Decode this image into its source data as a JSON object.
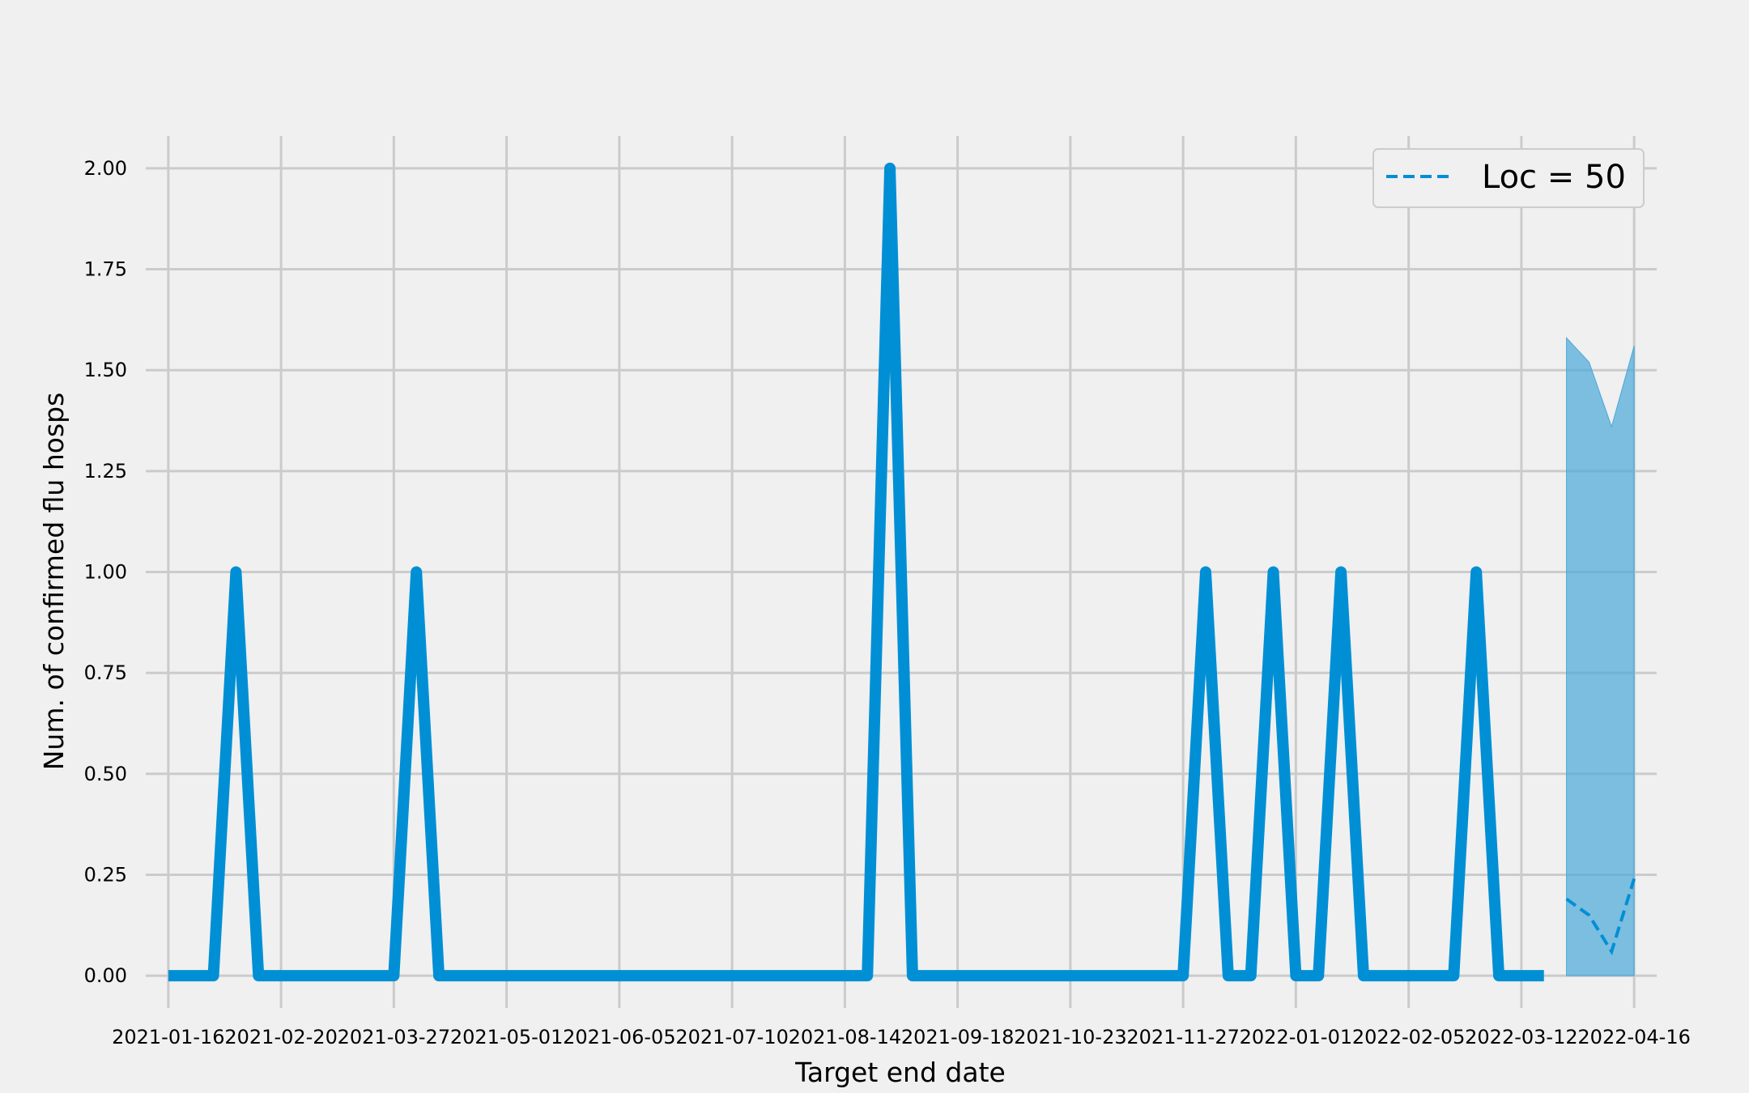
{
  "chart_data": {
    "type": "line",
    "xlabel": "Target end date",
    "ylabel": "Num. of confirmed flu hosps",
    "xlim": [
      "2021-01-09",
      "2022-04-23"
    ],
    "ylim": [
      -0.08,
      2.08
    ],
    "x_ticks": [
      "2021-01-16",
      "2021-02-20",
      "2021-03-27",
      "2021-05-01",
      "2021-06-05",
      "2021-07-10",
      "2021-08-14",
      "2021-09-18",
      "2021-10-23",
      "2021-11-27",
      "2022-01-01",
      "2022-02-05",
      "2022-03-12",
      "2022-04-16"
    ],
    "y_ticks": [
      0.0,
      0.25,
      0.5,
      0.75,
      1.0,
      1.25,
      1.5,
      1.75,
      2.0
    ],
    "y_tick_labels": [
      "0.00",
      "0.25",
      "0.50",
      "0.75",
      "1.00",
      "1.25",
      "1.50",
      "1.75",
      "2.00"
    ],
    "grid": true,
    "legend_position": "top-right",
    "colors": {
      "observed": "#008fd5",
      "forecast": "#008fd5",
      "interval": "#4aa8d8",
      "grid": "#cbcbcb",
      "background": "#f0f0f0"
    },
    "series": [
      {
        "kind": "observed",
        "x": [
          "2021-01-16",
          "2021-01-23",
          "2021-01-30",
          "2021-02-06",
          "2021-02-13",
          "2021-02-20",
          "2021-02-27",
          "2021-03-06",
          "2021-03-13",
          "2021-03-20",
          "2021-03-27",
          "2021-04-03",
          "2021-04-10",
          "2021-04-17",
          "2021-04-24",
          "2021-05-01",
          "2021-05-08",
          "2021-05-15",
          "2021-05-22",
          "2021-05-29",
          "2021-06-05",
          "2021-06-12",
          "2021-06-19",
          "2021-06-26",
          "2021-07-03",
          "2021-07-10",
          "2021-07-17",
          "2021-07-24",
          "2021-07-31",
          "2021-08-07",
          "2021-08-14",
          "2021-08-21",
          "2021-08-28",
          "2021-09-04",
          "2021-09-11",
          "2021-09-18",
          "2021-09-25",
          "2021-10-02",
          "2021-10-09",
          "2021-10-16",
          "2021-10-23",
          "2021-10-30",
          "2021-11-06",
          "2021-11-13",
          "2021-11-20",
          "2021-11-27",
          "2021-12-04",
          "2021-12-11",
          "2021-12-18",
          "2021-12-25",
          "2022-01-01",
          "2022-01-08",
          "2022-01-15",
          "2022-01-22",
          "2022-01-29",
          "2022-02-05",
          "2022-02-12",
          "2022-02-19",
          "2022-02-26",
          "2022-03-05",
          "2022-03-12",
          "2022-03-19"
        ],
        "values": [
          0,
          0,
          0,
          1,
          0,
          0,
          0,
          0,
          0,
          0,
          0,
          1,
          0,
          0,
          0,
          0,
          0,
          0,
          0,
          0,
          0,
          0,
          0,
          0,
          0,
          0,
          0,
          0,
          0,
          0,
          0,
          0,
          2,
          0,
          0,
          0,
          0,
          0,
          0,
          0,
          0,
          0,
          0,
          0,
          0,
          0,
          1,
          0,
          0,
          1,
          0,
          0,
          1,
          0,
          0,
          0,
          0,
          0,
          1,
          0,
          0,
          0
        ]
      },
      {
        "kind": "forecast",
        "name": "Loc = 50",
        "x": [
          "2022-03-26",
          "2022-04-02",
          "2022-04-09",
          "2022-04-16"
        ],
        "values": [
          0.19,
          0.15,
          0.06,
          0.24
        ],
        "lower": [
          0.0,
          0.0,
          0.0,
          0.0
        ],
        "upper": [
          1.58,
          1.52,
          1.36,
          1.56
        ]
      }
    ]
  }
}
